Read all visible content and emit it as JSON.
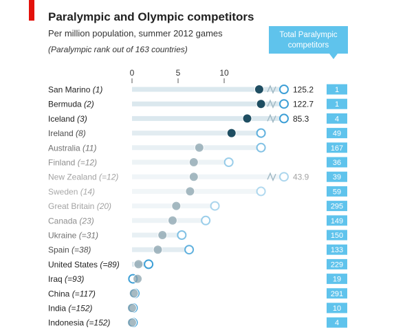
{
  "accent_red": "#e3120b",
  "colors": {
    "paralympic": "#1f4e62",
    "olympic": "#3d9fd6",
    "box": "#5fc3ec",
    "bar": "#dbe8ee"
  },
  "chart_data": {
    "type": "dot",
    "title": "Paralympic and Olympic competitors",
    "subtitle": "Per million population, summer 2012 games",
    "note": "(Paralympic rank out of 163 countries)",
    "box_header": "Total Paralympic competitors",
    "x_ticks": [
      0,
      5,
      10
    ],
    "xlim": [
      0,
      14
    ],
    "axis_break": true,
    "series": [
      {
        "name": "Paralympic",
        "key": "para"
      },
      {
        "name": "Olympic",
        "key": "oly"
      }
    ],
    "rows": [
      {
        "country": "San Marino",
        "rank": "(1)",
        "para": 13.8,
        "oly": 125.2,
        "oly_label": "125.2",
        "total": "1"
      },
      {
        "country": "Bermuda",
        "rank": "(2)",
        "para": 14.0,
        "oly": 122.7,
        "oly_label": "122.7",
        "total": "1"
      },
      {
        "country": "Iceland",
        "rank": "(3)",
        "para": 12.5,
        "oly": 85.3,
        "oly_label": "85.3",
        "total": "4"
      },
      {
        "country": "Ireland",
        "rank": "(8)",
        "para": 10.8,
        "oly": 14.0,
        "oly_label": "",
        "total": "49"
      },
      {
        "country": "Australia",
        "rank": "(11)",
        "para": 7.3,
        "oly": 14.0,
        "oly_label": "",
        "total": "167"
      },
      {
        "country": "Finland",
        "rank": "(=12)",
        "para": 6.7,
        "oly": 10.5,
        "oly_label": "",
        "total": "36"
      },
      {
        "country": "New Zealand",
        "rank": "(=12)",
        "para": 6.7,
        "oly": 43.9,
        "oly_label": "43.9",
        "total": "39"
      },
      {
        "country": "Sweden",
        "rank": "(14)",
        "para": 6.3,
        "oly": 14.0,
        "oly_label": "",
        "total": "59"
      },
      {
        "country": "Great Britain",
        "rank": "(20)",
        "para": 4.8,
        "oly": 9.0,
        "oly_label": "",
        "total": "295"
      },
      {
        "country": "Canada",
        "rank": "(23)",
        "para": 4.4,
        "oly": 8.0,
        "oly_label": "",
        "total": "149"
      },
      {
        "country": "Ukraine",
        "rank": "(=31)",
        "para": 3.3,
        "oly": 5.4,
        "oly_label": "",
        "total": "150"
      },
      {
        "country": "Spain",
        "rank": "(=38)",
        "para": 2.8,
        "oly": 6.2,
        "oly_label": "",
        "total": "133"
      },
      {
        "country": "United States",
        "rank": "(=89)",
        "para": 0.7,
        "oly": 1.8,
        "oly_label": "",
        "total": "229"
      },
      {
        "country": "Iraq",
        "rank": "(=93)",
        "para": 0.6,
        "oly": 0.1,
        "oly_label": "",
        "total": "19"
      },
      {
        "country": "China",
        "rank": "(=117)",
        "para": 0.2,
        "oly": 0.3,
        "oly_label": "",
        "total": "291"
      },
      {
        "country": "India",
        "rank": "(=152)",
        "para": 0.0,
        "oly": 0.1,
        "oly_label": "",
        "total": "10"
      },
      {
        "country": "Indonesia",
        "rank": "(=152)",
        "para": 0.0,
        "oly": 0.1,
        "oly_label": "",
        "total": "4"
      }
    ]
  }
}
